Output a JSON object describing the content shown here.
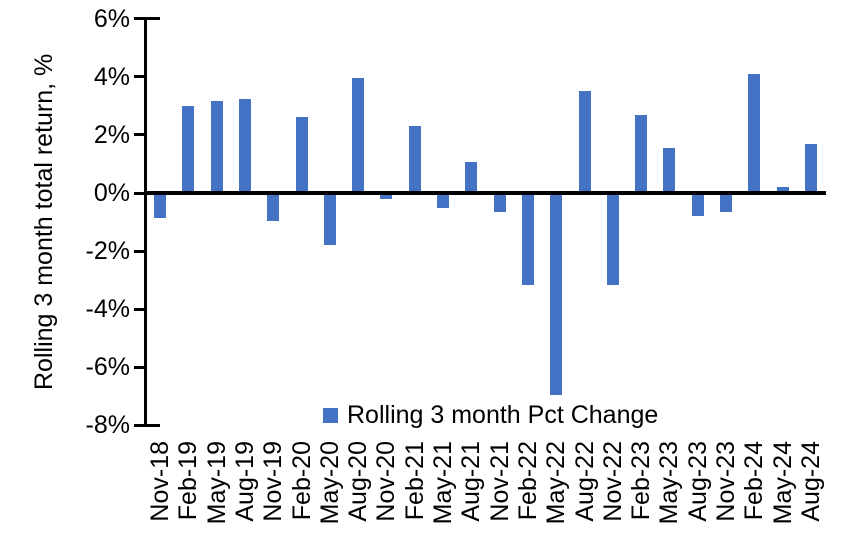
{
  "chart_data": {
    "type": "bar",
    "title": "",
    "xlabel": "",
    "ylabel": "Rolling 3 month total return, %",
    "categories": [
      "Nov-18",
      "Feb-19",
      "May-19",
      "Aug-19",
      "Nov-19",
      "Feb-20",
      "May-20",
      "Aug-20",
      "Nov-20",
      "Feb-21",
      "May-21",
      "Aug-21",
      "Nov-21",
      "Feb-22",
      "May-22",
      "Aug-22",
      "Nov-22",
      "Feb-23",
      "May-23",
      "Aug-23",
      "Nov-23",
      "Feb-24",
      "May-24",
      "Aug-24"
    ],
    "values": [
      -0.85,
      3.0,
      3.15,
      3.25,
      -0.95,
      2.6,
      -1.8,
      3.95,
      -0.2,
      2.3,
      -0.5,
      1.05,
      -0.65,
      -3.15,
      -6.95,
      3.5,
      -3.15,
      2.7,
      1.55,
      -0.8,
      -0.65,
      4.1,
      0.2,
      1.7
    ],
    "ylim": [
      -8,
      6
    ],
    "ytick_values": [
      6,
      4,
      2,
      0,
      -2,
      -4,
      -6,
      -8
    ],
    "ytick_labels": [
      "6%",
      "4%",
      "2%",
      "0%",
      "-2%",
      "-4%",
      "-6%",
      "-8%"
    ],
    "grid": false,
    "legend": {
      "label": "Rolling 3 month Pct Change",
      "position": "bottom-center"
    },
    "colors": {
      "bar": "#4472C4",
      "axis": "#000000",
      "text": "#000000",
      "background": "#ffffff"
    }
  }
}
